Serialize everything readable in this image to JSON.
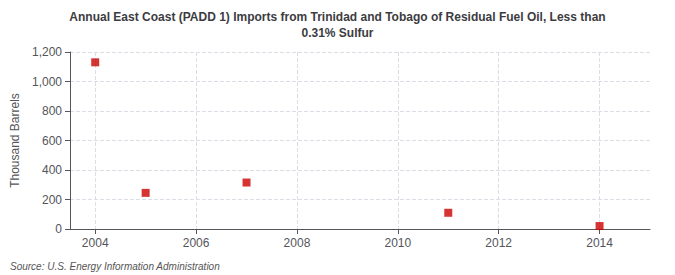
{
  "chart_data": {
    "type": "scatter",
    "title": "Annual East Coast (PADD 1) Imports from Trinidad and Tobago of Residual Fuel Oil, Less than\n0.31% Sulfur",
    "ylabel": "Thousand Barrels",
    "annotations": [
      "Source: U.S. Energy Information Administration"
    ],
    "x": [
      2004,
      2005,
      2007,
      2011,
      2014
    ],
    "values": [
      1130,
      245,
      315,
      110,
      20
    ],
    "color": "#cc0000",
    "marker": "square",
    "xlim": [
      2003.5,
      2015
    ],
    "xticks": [
      2004,
      2006,
      2008,
      2010,
      2012,
      2014
    ],
    "ylim": [
      0,
      1200
    ],
    "yticks": [
      0,
      200,
      400,
      600,
      800,
      {
        "value": 1000,
        "label": "1,000"
      },
      {
        "value": 1200,
        "label": "1,200"
      }
    ],
    "grid": true
  }
}
